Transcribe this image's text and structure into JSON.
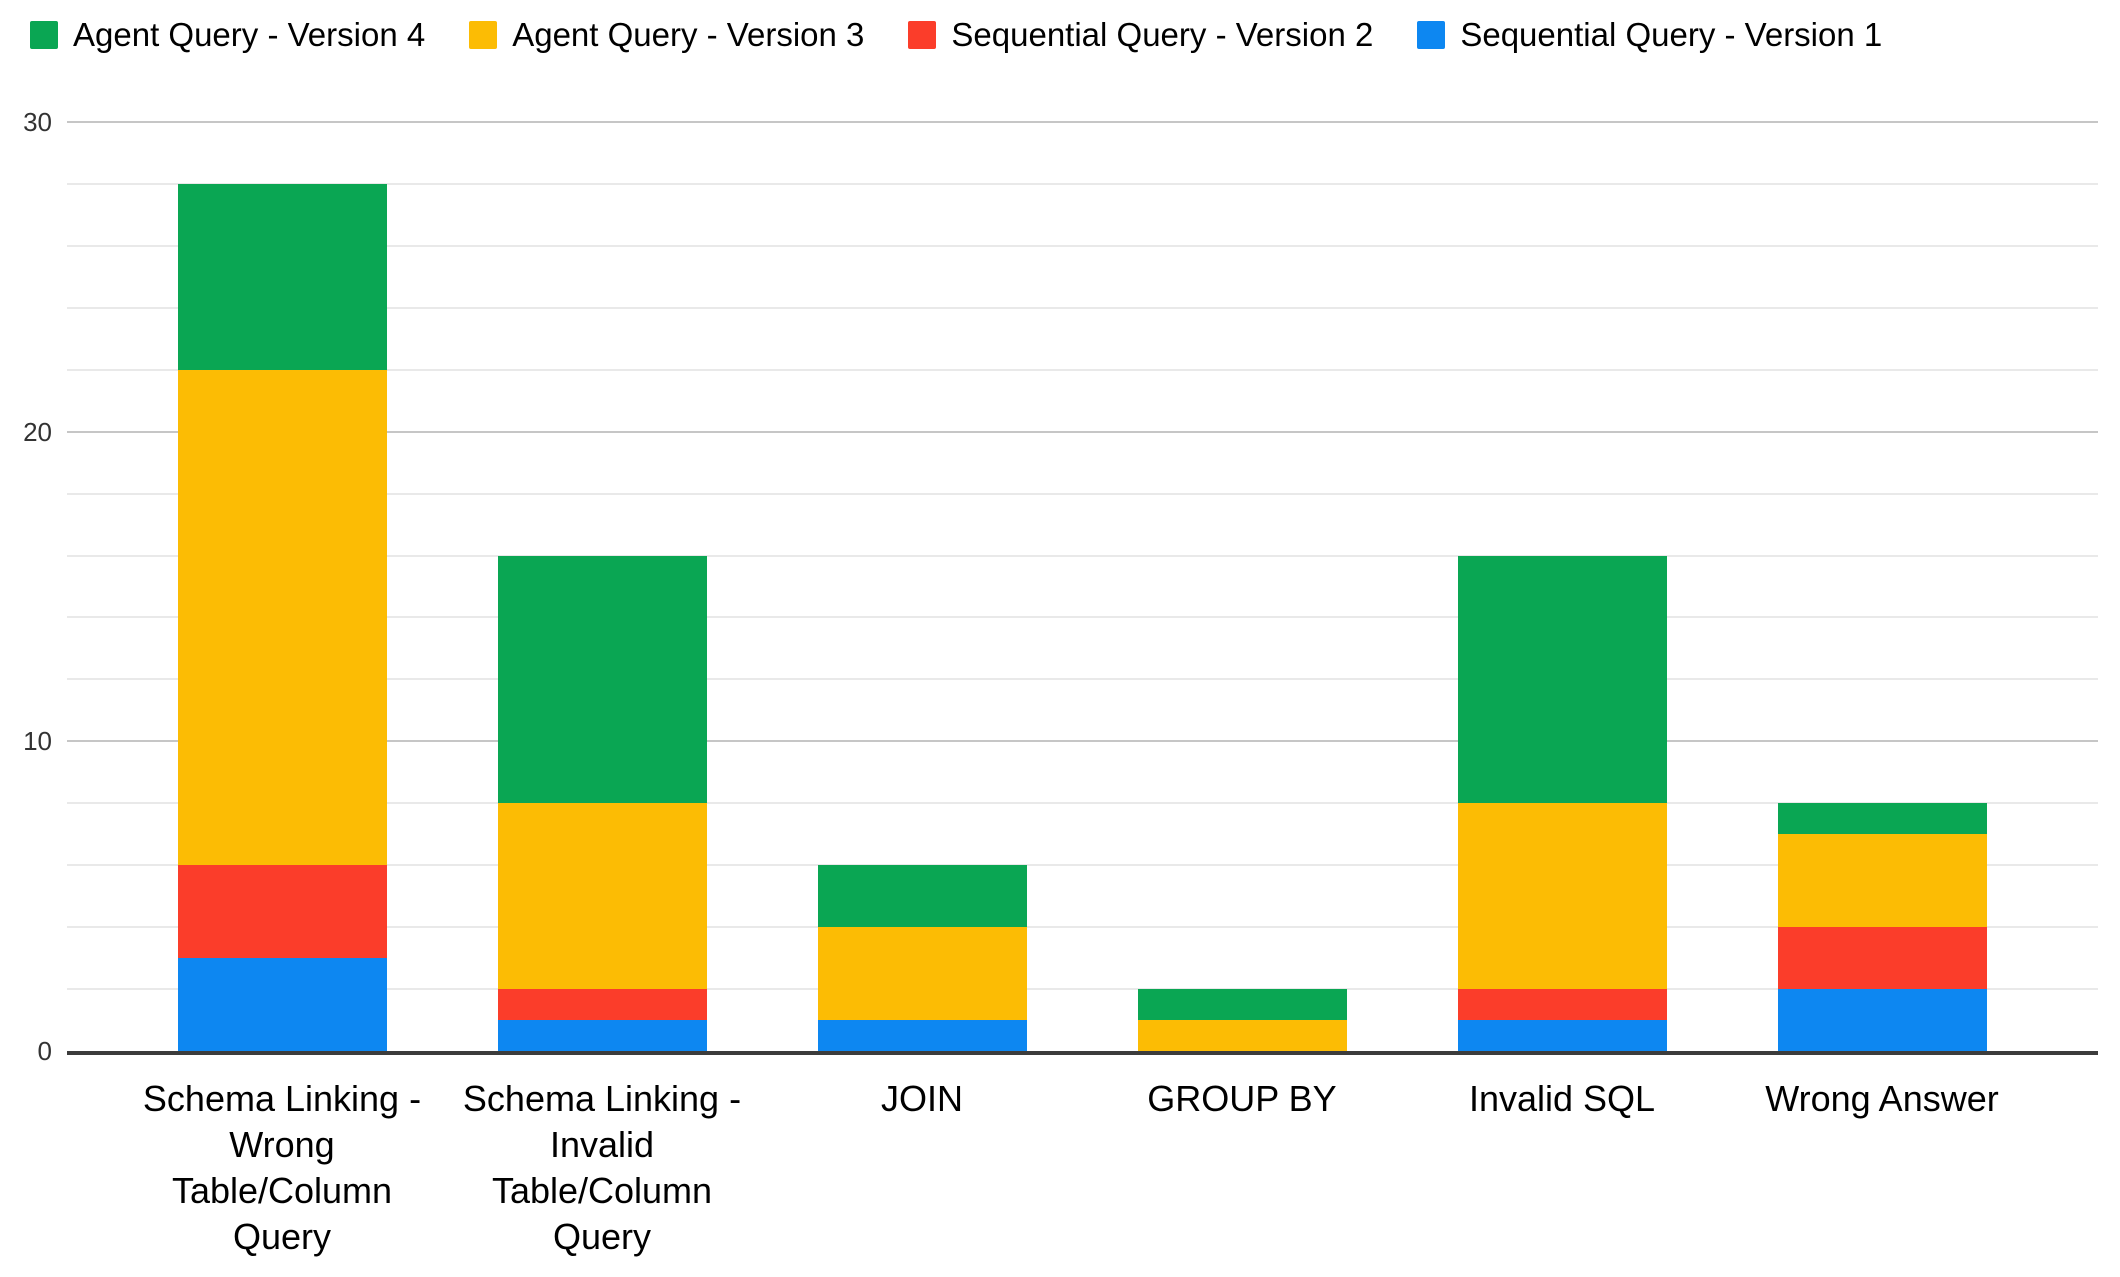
{
  "chart_data": {
    "type": "bar",
    "stacked": true,
    "title": "",
    "categories": [
      "Schema Linking -\nWrong\nTable/Column\nQuery",
      "Schema Linking -\nInvalid\nTable/Column\nQuery",
      "JOIN",
      "GROUP BY",
      "Invalid SQL",
      "Wrong Answer"
    ],
    "series": [
      {
        "name": "Agent Query - Version 4",
        "color": "#0aa653",
        "values": [
          6,
          8,
          2,
          1,
          8,
          1
        ]
      },
      {
        "name": "Agent Query - Version 3",
        "color": "#fcbc04",
        "values": [
          16,
          6,
          3,
          1,
          6,
          3
        ]
      },
      {
        "name": "Sequential Query - Version 2",
        "color": "#fb3d2a",
        "values": [
          3,
          1,
          0,
          0,
          1,
          2
        ]
      },
      {
        "name": "Sequential Query - Version 1",
        "color": "#0d87f1",
        "values": [
          3,
          1,
          1,
          0,
          1,
          2
        ]
      }
    ],
    "totals": [
      28,
      16,
      6,
      2,
      16,
      8
    ],
    "xlabel": "",
    "ylabel": "",
    "ylim": [
      0,
      30
    ],
    "yticks": [
      0,
      10,
      20,
      30
    ],
    "minor_grid_step": 2,
    "grid": true,
    "legend_position": "top-left",
    "axis_color": "#3c3c3c",
    "major_grid_color": "#c6c6c6",
    "minor_grid_color": "#e9e9e9",
    "background_color": "#ffffff"
  }
}
